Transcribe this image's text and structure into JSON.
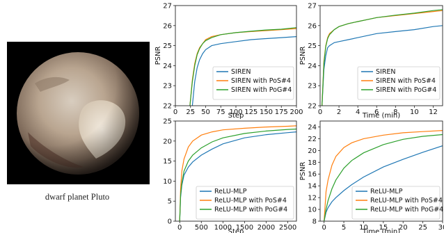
{
  "figure": {
    "caption": "dwarf planet Pluto",
    "image_description_icon": "pluto-planet-icon"
  },
  "colors": {
    "SIREN": "#1f77b4",
    "PoS": "#ff7f0e",
    "PoG": "#2ca02c"
  },
  "chart_data": [
    {
      "type": "line",
      "xlabel": "Step",
      "ylabel": "PSNR",
      "xlim": [
        0,
        200
      ],
      "ylim": [
        22,
        27
      ],
      "xticks": [
        0,
        25,
        50,
        75,
        100,
        125,
        150,
        175,
        200
      ],
      "yticks": [
        22,
        23,
        24,
        25,
        26,
        27
      ],
      "legend_position": "lower-right",
      "series": [
        {
          "name": "SIREN",
          "color": "#1f77b4",
          "x": [
            28,
            32,
            36,
            40,
            45,
            50,
            60,
            75,
            100,
            125,
            150,
            175,
            200
          ],
          "y": [
            22.0,
            23.2,
            23.9,
            24.3,
            24.6,
            24.8,
            25.0,
            25.1,
            25.2,
            25.3,
            25.35,
            25.4,
            25.45
          ]
        },
        {
          "name": "SIREN with PoS#4",
          "color": "#ff7f0e",
          "x": [
            24,
            28,
            32,
            36,
            40,
            45,
            50,
            60,
            75,
            100,
            125,
            150,
            175,
            200
          ],
          "y": [
            22.0,
            23.3,
            24.1,
            24.6,
            24.9,
            25.1,
            25.3,
            25.45,
            25.55,
            25.65,
            25.7,
            25.75,
            25.8,
            25.85
          ]
        },
        {
          "name": "SIREN with PoG#4",
          "color": "#2ca02c",
          "x": [
            24,
            28,
            32,
            36,
            40,
            45,
            50,
            60,
            75,
            100,
            125,
            150,
            175,
            200
          ],
          "y": [
            22.0,
            23.2,
            24.0,
            24.55,
            24.85,
            25.1,
            25.25,
            25.4,
            25.55,
            25.65,
            25.72,
            25.78,
            25.82,
            25.9
          ]
        }
      ]
    },
    {
      "type": "line",
      "xlabel": "Time (min)",
      "ylabel": "PSNR",
      "xlim": [
        0,
        13
      ],
      "ylim": [
        22,
        27
      ],
      "xticks": [
        0,
        2,
        4,
        6,
        8,
        10,
        12
      ],
      "yticks": [
        22,
        23,
        24,
        25,
        26,
        27
      ],
      "legend_position": "lower-right",
      "series": [
        {
          "name": "SIREN",
          "color": "#1f77b4",
          "x": [
            0.2,
            0.4,
            0.6,
            0.8,
            1.0,
            1.5,
            2,
            3,
            4,
            5,
            6,
            8,
            10,
            12,
            13
          ],
          "y": [
            22.0,
            23.8,
            24.5,
            24.9,
            25.0,
            25.15,
            25.2,
            25.3,
            25.4,
            25.5,
            25.6,
            25.7,
            25.8,
            25.95,
            26.0
          ]
        },
        {
          "name": "SIREN with PoS#4",
          "color": "#ff7f0e",
          "x": [
            0.2,
            0.4,
            0.6,
            0.8,
            1.0,
            1.5,
            2,
            3,
            4,
            5,
            6,
            8,
            10,
            12,
            13
          ],
          "y": [
            22.0,
            24.2,
            25.0,
            25.4,
            25.6,
            25.8,
            25.95,
            26.1,
            26.2,
            26.3,
            26.4,
            26.5,
            26.6,
            26.7,
            26.75
          ]
        },
        {
          "name": "SIREN with PoG#4",
          "color": "#2ca02c",
          "x": [
            0.2,
            0.4,
            0.6,
            0.8,
            1.0,
            1.5,
            2,
            3,
            4,
            5,
            6,
            8,
            10,
            12,
            13
          ],
          "y": [
            22.0,
            24.1,
            24.95,
            25.35,
            25.55,
            25.8,
            25.95,
            26.1,
            26.2,
            26.3,
            26.4,
            26.52,
            26.62,
            26.75,
            26.8
          ]
        }
      ]
    },
    {
      "type": "line",
      "xlabel": "Step",
      "ylabel": "",
      "xlim": [
        -100,
        2700
      ],
      "ylim": [
        0,
        25
      ],
      "xticks": [
        0,
        500,
        1000,
        1500,
        2000,
        2500
      ],
      "yticks": [
        0,
        5,
        10,
        15,
        20,
        25
      ],
      "legend_position": "lower-right",
      "series": [
        {
          "name": "ReLU-MLP",
          "color": "#1f77b4",
          "x": [
            0,
            20,
            50,
            100,
            200,
            300,
            500,
            750,
            1000,
            1500,
            2000,
            2500,
            2700
          ],
          "y": [
            0,
            6,
            9,
            11.5,
            13.5,
            14.8,
            16.5,
            18,
            19.3,
            20.8,
            21.6,
            22.1,
            22.3
          ]
        },
        {
          "name": "ReLU-MLP with PoS#4",
          "color": "#ff7f0e",
          "x": [
            0,
            20,
            50,
            100,
            200,
            300,
            500,
            750,
            1000,
            1500,
            2000,
            2500,
            2700
          ],
          "y": [
            0,
            8,
            12.5,
            15.5,
            18.5,
            20,
            21.5,
            22.3,
            22.8,
            23.2,
            23.5,
            23.7,
            23.8
          ]
        },
        {
          "name": "ReLU-MLP with PoG#4",
          "color": "#2ca02c",
          "x": [
            0,
            20,
            50,
            100,
            200,
            300,
            500,
            750,
            1000,
            1500,
            2000,
            2500,
            2700
          ],
          "y": [
            0,
            6.5,
            9.5,
            12.5,
            15,
            16.5,
            18.3,
            19.8,
            20.8,
            21.9,
            22.5,
            22.9,
            23.0
          ]
        }
      ]
    },
    {
      "type": "line",
      "xlabel": "Time (min)",
      "ylabel": "PSNR",
      "xlim": [
        -1,
        30
      ],
      "ylim": [
        8,
        25
      ],
      "xticks": [
        0,
        5,
        10,
        15,
        20,
        25,
        30
      ],
      "yticks": [
        8,
        10,
        12,
        14,
        16,
        18,
        20,
        22,
        24
      ],
      "legend_position": "lower-right",
      "series": [
        {
          "name": "ReLU-MLP",
          "color": "#1f77b4",
          "x": [
            0,
            0.5,
            1,
            2,
            3,
            5,
            7,
            10,
            15,
            20,
            25,
            30
          ],
          "y": [
            8,
            9.5,
            10.3,
            11.3,
            12,
            13.2,
            14.2,
            15.5,
            17.2,
            18.5,
            19.7,
            20.8
          ]
        },
        {
          "name": "ReLU-MLP with PoS#4",
          "color": "#ff7f0e",
          "x": [
            0,
            0.5,
            1,
            2,
            3,
            5,
            7,
            10,
            15,
            20,
            25,
            30
          ],
          "y": [
            8,
            13,
            15,
            17.5,
            19,
            20.5,
            21.3,
            22.0,
            22.6,
            23.0,
            23.2,
            23.4
          ]
        },
        {
          "name": "ReLU-MLP with PoG#4",
          "color": "#2ca02c",
          "x": [
            0,
            0.5,
            1,
            2,
            3,
            5,
            7,
            10,
            15,
            20,
            25,
            30
          ],
          "y": [
            8,
            10,
            11.5,
            13.5,
            15,
            17,
            18.3,
            19.6,
            21.0,
            21.9,
            22.4,
            22.7
          ]
        }
      ]
    }
  ]
}
